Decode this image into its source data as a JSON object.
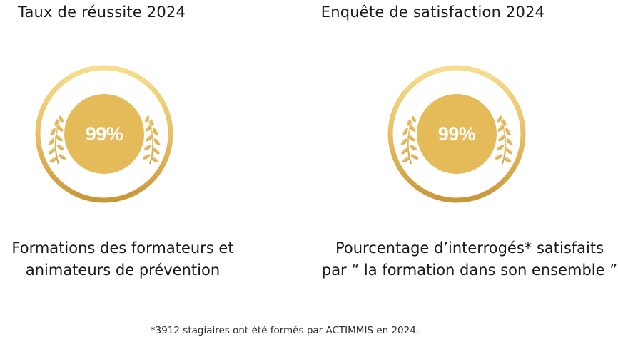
{
  "left": {
    "title": "Taux de réussite 2024",
    "badge_value": "99%",
    "caption_line1": "Formations des formateurs et",
    "caption_line2": "animateurs de prévention"
  },
  "right": {
    "title": "Enquête de satisfaction 2024",
    "badge_value": "99%",
    "caption_line1": "Pourcentage d’interrogés*  satisfaits",
    "caption_line2": "par “ la formation dans son ensemble ”"
  },
  "footnote": "*3912  stagiaires ont été formés par ACTIMMIS en 2024.",
  "colors": {
    "gold_light": "#f2d27a",
    "gold_mid": "#e2b757",
    "gold_dark": "#c99a3c",
    "disc": "#e6bc5c"
  },
  "icons": [
    "laurel-left-icon",
    "laurel-right-icon"
  ]
}
